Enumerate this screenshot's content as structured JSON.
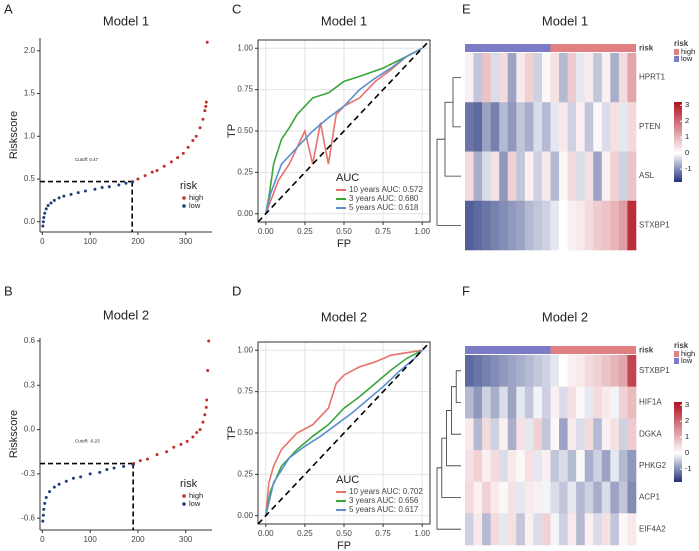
{
  "chart_data": [
    {
      "type": "riskscore",
      "panel_label": "A",
      "title": "Model 1",
      "ylabel": "Riskscore",
      "xlim": [
        -5,
        355
      ],
      "xticks": [
        0,
        100,
        200,
        300
      ],
      "ylim": [
        -0.12,
        2.15
      ],
      "yticks": [
        {
          "value": 0,
          "label": "0.0"
        },
        {
          "value": 0.5,
          "label": "0.5"
        },
        {
          "value": 1,
          "label": "1.0"
        },
        {
          "value": 1.5,
          "label": "1.5"
        },
        {
          "value": 2,
          "label": "2.0"
        }
      ],
      "cutoff": {
        "x": 188,
        "y": 0.47,
        "label": "Cutoff: 0.47"
      },
      "legend_title": "risk",
      "series": [
        {
          "name": "high",
          "color": "#c0302b",
          "x": [
            189,
            200,
            215,
            230,
            240,
            255,
            270,
            283,
            295,
            305,
            315,
            322,
            330,
            336,
            340,
            342,
            343,
            345
          ],
          "values": [
            0.47,
            0.5,
            0.54,
            0.58,
            0.6,
            0.65,
            0.7,
            0.75,
            0.8,
            0.87,
            0.95,
            1.0,
            1.1,
            1.2,
            1.3,
            1.35,
            1.4,
            2.1
          ]
        },
        {
          "name": "low",
          "color": "#1f3f7a",
          "x": [
            1,
            2,
            3,
            5,
            8,
            12,
            18,
            25,
            35,
            45,
            60,
            75,
            90,
            110,
            125,
            140,
            160,
            175,
            188
          ],
          "values": [
            -0.05,
            0.0,
            0.05,
            0.1,
            0.15,
            0.19,
            0.22,
            0.25,
            0.28,
            0.3,
            0.32,
            0.34,
            0.36,
            0.38,
            0.4,
            0.41,
            0.43,
            0.45,
            0.46
          ]
        }
      ]
    },
    {
      "type": "riskscore",
      "panel_label": "B",
      "title": "Model 2",
      "ylabel": "Riskscore",
      "xlim": [
        -5,
        355
      ],
      "xticks": [
        0,
        100,
        200,
        300
      ],
      "ylim": [
        -0.68,
        0.62
      ],
      "yticks": [
        {
          "value": -0.6,
          "label": "-0.6"
        },
        {
          "value": -0.3,
          "label": "-0.3"
        },
        {
          "value": 0,
          "label": "0.0"
        },
        {
          "value": 0.3,
          "label": "0.3"
        },
        {
          "value": 0.6,
          "label": "0.6"
        }
      ],
      "cutoff": {
        "x": 190,
        "y": -0.23,
        "label": "Cutoff: -0.23"
      },
      "legend_title": "risk",
      "series": [
        {
          "name": "high",
          "color": "#c0302b",
          "x": [
            191,
            205,
            220,
            240,
            260,
            275,
            290,
            303,
            315,
            323,
            330,
            336,
            340,
            343,
            344,
            346,
            348
          ],
          "values": [
            -0.23,
            -0.21,
            -0.2,
            -0.17,
            -0.15,
            -0.12,
            -0.1,
            -0.08,
            -0.05,
            -0.02,
            0.0,
            0.05,
            0.1,
            0.15,
            0.2,
            0.4,
            0.6
          ]
        },
        {
          "name": "low",
          "color": "#1f3f7a",
          "x": [
            1,
            2,
            3,
            5,
            8,
            15,
            25,
            35,
            50,
            65,
            80,
            100,
            120,
            135,
            150,
            170,
            190
          ],
          "values": [
            -0.62,
            -0.58,
            -0.54,
            -0.5,
            -0.46,
            -0.42,
            -0.39,
            -0.37,
            -0.35,
            -0.33,
            -0.32,
            -0.3,
            -0.29,
            -0.27,
            -0.26,
            -0.25,
            -0.24
          ]
        }
      ]
    },
    {
      "type": "roc",
      "panel_label": "C",
      "title": "Model 1",
      "xlabel": "FP",
      "ylabel": "TP",
      "xlim": [
        -0.05,
        1.05
      ],
      "ylim": [
        -0.05,
        1.05
      ],
      "xticks": [
        {
          "value": 0,
          "label": "0.00"
        },
        {
          "value": 0.25,
          "label": "0.25"
        },
        {
          "value": 0.5,
          "label": "0.50"
        },
        {
          "value": 0.75,
          "label": "0.75"
        },
        {
          "value": 1,
          "label": "1.00"
        }
      ],
      "yticks": [
        {
          "value": 0,
          "label": "0.00"
        },
        {
          "value": 0.25,
          "label": "0.25"
        },
        {
          "value": 0.5,
          "label": "0.50"
        },
        {
          "value": 0.75,
          "label": "0.75"
        },
        {
          "value": 1,
          "label": "1.00"
        }
      ],
      "grid": true,
      "legend_title": "AUC",
      "series": [
        {
          "name": "10 years AUC: 0.572",
          "color": "#e8716b",
          "x": [
            0,
            0.02,
            0.08,
            0.15,
            0.2,
            0.25,
            0.3,
            0.35,
            0.4,
            0.45,
            0.5,
            0.6,
            0.7,
            0.8,
            0.9,
            1
          ],
          "values": [
            0,
            0.05,
            0.2,
            0.3,
            0.4,
            0.5,
            0.3,
            0.55,
            0.3,
            0.6,
            0.65,
            0.7,
            0.8,
            0.87,
            0.95,
            1
          ]
        },
        {
          "name": "3 years AUC: 0.680",
          "color": "#3aa63a",
          "x": [
            0,
            0.02,
            0.05,
            0.1,
            0.15,
            0.2,
            0.3,
            0.4,
            0.5,
            0.6,
            0.75,
            0.9,
            1
          ],
          "values": [
            0,
            0.1,
            0.3,
            0.45,
            0.52,
            0.6,
            0.7,
            0.73,
            0.8,
            0.83,
            0.88,
            0.95,
            1
          ]
        },
        {
          "name": "5 years AUC: 0.618",
          "color": "#5a8fd0",
          "x": [
            0,
            0.03,
            0.1,
            0.2,
            0.3,
            0.4,
            0.5,
            0.6,
            0.7,
            0.8,
            0.9,
            1
          ],
          "values": [
            0,
            0.12,
            0.3,
            0.4,
            0.5,
            0.58,
            0.65,
            0.75,
            0.82,
            0.88,
            0.95,
            1
          ]
        }
      ]
    },
    {
      "type": "roc",
      "panel_label": "D",
      "title": "Model 2",
      "xlabel": "FP",
      "ylabel": "TP",
      "xlim": [
        -0.05,
        1.05
      ],
      "ylim": [
        -0.05,
        1.05
      ],
      "xticks": [
        {
          "value": 0,
          "label": "0.00"
        },
        {
          "value": 0.25,
          "label": "0.25"
        },
        {
          "value": 0.5,
          "label": "0.50"
        },
        {
          "value": 0.75,
          "label": "0.75"
        },
        {
          "value": 1,
          "label": "1.00"
        }
      ],
      "yticks": [
        {
          "value": 0,
          "label": "0.00"
        },
        {
          "value": 0.25,
          "label": "0.25"
        },
        {
          "value": 0.5,
          "label": "0.50"
        },
        {
          "value": 0.75,
          "label": "0.75"
        },
        {
          "value": 1,
          "label": "1.00"
        }
      ],
      "grid": true,
      "legend_title": "AUC",
      "series": [
        {
          "name": "10 years AUC: 0.702",
          "color": "#e8716b",
          "x": [
            0,
            0.02,
            0.05,
            0.1,
            0.2,
            0.3,
            0.4,
            0.45,
            0.5,
            0.6,
            0.7,
            0.8,
            1
          ],
          "values": [
            0,
            0.2,
            0.3,
            0.4,
            0.5,
            0.55,
            0.65,
            0.8,
            0.85,
            0.9,
            0.93,
            0.97,
            1
          ]
        },
        {
          "name": "3 years AUC: 0.656",
          "color": "#3aa63a",
          "x": [
            0,
            0.03,
            0.1,
            0.2,
            0.3,
            0.4,
            0.5,
            0.6,
            0.7,
            0.8,
            0.9,
            1
          ],
          "values": [
            0,
            0.15,
            0.3,
            0.4,
            0.48,
            0.55,
            0.65,
            0.72,
            0.8,
            0.88,
            0.95,
            1
          ]
        },
        {
          "name": "5 years AUC: 0.617",
          "color": "#5a8fd0",
          "x": [
            0,
            0.05,
            0.15,
            0.25,
            0.35,
            0.45,
            0.55,
            0.65,
            0.75,
            0.85,
            0.95,
            1
          ],
          "values": [
            0,
            0.2,
            0.35,
            0.42,
            0.48,
            0.55,
            0.62,
            0.7,
            0.78,
            0.87,
            0.95,
            1
          ]
        }
      ]
    },
    {
      "type": "heatmap",
      "panel_label": "E",
      "title": "Model 1",
      "annotation": {
        "name": "risk",
        "groups": [
          {
            "name": "low",
            "color": "#7b7bc8",
            "count": 10
          },
          {
            "name": "high",
            "color": "#e08080",
            "count": 10
          }
        ]
      },
      "legend_title": "risk",
      "legend": [
        "high",
        "low"
      ],
      "clim": [
        -1.8,
        3.2
      ],
      "colorbar_ticks": [
        -1,
        0,
        1,
        2,
        3
      ],
      "rows": [
        "HPRT1",
        "PTEN",
        "ASL",
        "STXBP1"
      ],
      "values": [
        [
          0.2,
          -0.5,
          0.8,
          -0.3,
          0.5,
          -0.8,
          0.3,
          0.6,
          -0.4,
          0.1,
          0.4,
          -0.6,
          0.7,
          -0.2,
          0.3,
          -0.5,
          0.2,
          -0.7,
          0.5,
          1.2
        ],
        [
          -1.2,
          -1.3,
          -0.8,
          -1.1,
          -0.6,
          -0.9,
          -0.5,
          -0.7,
          -0.3,
          -0.6,
          -0.2,
          0.3,
          -0.4,
          0.2,
          -0.5,
          0.1,
          -0.3,
          0.4,
          -0.2,
          0.5
        ],
        [
          0.5,
          -0.7,
          -0.3,
          0.4,
          -0.9,
          0.6,
          -0.5,
          0.2,
          -0.4,
          0.3,
          -0.6,
          0.1,
          0.5,
          -0.3,
          0.4,
          -0.8,
          0.2,
          0.6,
          -0.4,
          0.8
        ],
        [
          -1.4,
          -1.3,
          -1.2,
          -1.1,
          -1.0,
          -0.9,
          -0.8,
          -0.6,
          -0.5,
          -0.4,
          -0.2,
          0,
          0.2,
          0.3,
          0.5,
          0.7,
          0.8,
          1.0,
          1.3,
          2.8
        ]
      ]
    },
    {
      "type": "heatmap",
      "panel_label": "F",
      "title": "Model 2",
      "annotation": {
        "name": "risk",
        "groups": [
          {
            "name": "low",
            "color": "#7b7bc8",
            "count": 10
          },
          {
            "name": "high",
            "color": "#e08080",
            "count": 10
          }
        ]
      },
      "legend_title": "risk",
      "legend": [
        "high",
        "low"
      ],
      "clim": [
        -1.8,
        3.2
      ],
      "colorbar_ticks": [
        -1,
        0,
        1,
        2,
        3
      ],
      "rows": [
        "STXBP1",
        "HIF1A",
        "DGKA",
        "PHKG2",
        "ACP1",
        "EIF4A2"
      ],
      "values": [
        [
          -1.3,
          -1.2,
          -1.1,
          -1.0,
          -0.9,
          -0.8,
          -0.7,
          -0.6,
          -0.5,
          -0.4,
          -0.2,
          0,
          0.2,
          0.3,
          0.5,
          0.6,
          0.8,
          1.0,
          1.2,
          2.5
        ],
        [
          -0.6,
          -0.9,
          -0.4,
          -0.7,
          -0.3,
          -0.8,
          -0.2,
          -0.5,
          -0.1,
          -0.4,
          0.2,
          -0.3,
          0.4,
          0.1,
          -0.2,
          0.5,
          0.3,
          -0.1,
          0.6,
          0.9
        ],
        [
          0.3,
          -0.6,
          0.5,
          -0.4,
          0.2,
          -0.7,
          0.4,
          -0.2,
          0.6,
          -0.5,
          0.1,
          -0.8,
          0.3,
          -0.3,
          0.5,
          -0.6,
          0.2,
          0.4,
          -0.4,
          0.7
        ],
        [
          0.4,
          0.6,
          0.2,
          0.5,
          -0.3,
          0.3,
          0.1,
          0.4,
          -0.2,
          0.2,
          -0.5,
          -0.3,
          -0.6,
          0.1,
          -0.7,
          -0.4,
          -0.8,
          -0.2,
          -0.6,
          -0.9
        ],
        [
          0.5,
          0.2,
          0.6,
          0.3,
          0.1,
          0.4,
          -0.2,
          0.3,
          0.2,
          -0.1,
          -0.3,
          -0.5,
          -0.2,
          -0.6,
          -0.4,
          -0.7,
          -0.3,
          -0.8,
          -0.5,
          -1.0
        ],
        [
          -0.4,
          0.3,
          -0.6,
          0.5,
          -0.2,
          0.4,
          -0.5,
          0.2,
          -0.3,
          0.6,
          -0.1,
          -0.4,
          0.3,
          -0.6,
          0.2,
          -0.3,
          0.4,
          -0.5,
          0.1,
          0.3
        ]
      ]
    }
  ]
}
